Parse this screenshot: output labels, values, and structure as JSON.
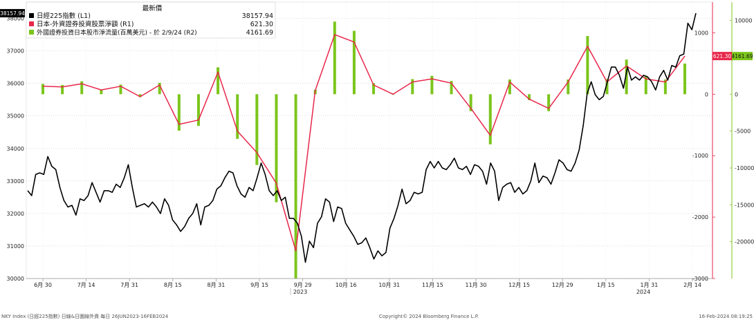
{
  "chart_data": {
    "type": "line",
    "legend": {
      "header": "最新價",
      "placement": "top-left",
      "entries": [
        {
          "name": "日經225指數 (L1)",
          "value": "38157.94",
          "color": "#000000"
        },
        {
          "name": "日本-外資證券投資股票淨額 (R1)",
          "value": "621.30",
          "color": "#e8264a"
        },
        {
          "name": "外國證券投資日本股市淨流量(百萬美元) - 於 2/9/24 (R2)",
          "value": "4161.69",
          "color": "#7cc51c"
        }
      ]
    },
    "left_axis": {
      "min": 30000,
      "max": 38500,
      "ticks": [
        "30000",
        "31000",
        "32000",
        "33000",
        "34000",
        "35000",
        "36000",
        "37000",
        "38000"
      ]
    },
    "right1_axis": {
      "min": -3000,
      "max": 1500,
      "ticks": [
        "1000",
        "0",
        "-1000",
        "-2000",
        "-3000"
      ]
    },
    "right2_axis": {
      "min": -25000,
      "max": 12500,
      "ticks": [
        "10000",
        "5000",
        "0",
        "-5000",
        "-10000",
        "-15000",
        "-20000"
      ]
    },
    "last_value_labels": {
      "nikkei": "38157.94",
      "r1": "621.30",
      "r2": "4161.69"
    },
    "x_axis": {
      "ticks": [
        "6月 30",
        "7月 14",
        "7月 31",
        "8月 15",
        "8月 31",
        "9月 15",
        "9月 29",
        "10月 16",
        "10月 31",
        "11月 15",
        "11月 30",
        "12月 15",
        "12月 29",
        "1月 15",
        "1月 31",
        "2月 14"
      ],
      "year_labels": [
        "2023",
        "2024"
      ]
    },
    "series": [
      {
        "name": "日經225指數 (L1)",
        "axis": "left",
        "values": [
          32700,
          32550,
          33200,
          33250,
          33200,
          33750,
          33450,
          33350,
          32800,
          32400,
          32200,
          32250,
          31950,
          32450,
          32400,
          32550,
          32950,
          32650,
          32350,
          32700,
          32700,
          32650,
          32900,
          32800,
          33100,
          33500,
          32800,
          32200,
          32250,
          32300,
          32200,
          32350,
          32200,
          32000,
          32450,
          32250,
          31800,
          31650,
          31450,
          31600,
          31850,
          32000,
          32300,
          31650,
          32200,
          32250,
          32400,
          32750,
          32850,
          33100,
          33300,
          33250,
          32850,
          32600,
          32500,
          32800,
          32700,
          33100,
          33550,
          33200,
          32700,
          32550,
          32700,
          32400,
          32500,
          31850,
          31850,
          31700,
          31300,
          30500,
          31150,
          30950,
          31700,
          31900,
          32450,
          32350,
          31750,
          32200,
          32150,
          31700,
          31500,
          31300,
          31050,
          31100,
          31250,
          30950,
          30600,
          30850,
          30700,
          30800,
          31550,
          31850,
          32250,
          32750,
          32300,
          32400,
          32650,
          32600,
          32650,
          33350,
          33600,
          33400,
          33600,
          33400,
          33350,
          33500,
          33700,
          33400,
          33350,
          33450,
          33200,
          33500,
          33450,
          33300,
          32900,
          33550,
          33300,
          32400,
          32800,
          32900,
          32950,
          32650,
          32800,
          32600,
          32700,
          33000,
          33550,
          32950,
          33150,
          33100,
          32900,
          33250,
          33650,
          33550,
          33350,
          33300,
          33550,
          33950,
          34700,
          35700,
          36050,
          35650,
          35500,
          35600,
          36050,
          36500,
          36500,
          36250,
          35850,
          36500,
          36100,
          36200,
          36100,
          36250,
          36200,
          36050,
          35800,
          36200,
          36400,
          36100,
          36550,
          36500,
          36850,
          36900,
          37850,
          37650,
          38157.94
        ]
      },
      {
        "name": "日本-外資證券投資股票淨額 (R1)",
        "axis": "right1",
        "x_index": [
          0,
          1,
          2,
          3,
          4,
          5,
          6,
          7,
          8,
          9,
          10,
          11,
          12,
          13,
          14,
          15,
          16,
          17,
          18,
          19,
          20,
          21,
          22,
          23,
          24,
          25,
          26,
          27,
          28,
          29,
          30,
          31,
          32,
          33
        ],
        "values": [
          130,
          120,
          170,
          70,
          130,
          -40,
          150,
          -490,
          -420,
          360,
          -600,
          -950,
          -1450,
          -2550,
          60,
          970,
          850,
          150,
          0,
          200,
          250,
          180,
          -230,
          -670,
          200,
          -80,
          -230,
          200,
          780,
          200,
          460,
          250,
          200,
          621.3
        ]
      },
      {
        "name": "外國證券投資日本股市淨流量(百萬美元) - 於 2/9/24 (R2)",
        "axis": "right2",
        "x_index": [
          0,
          1,
          2,
          3,
          4,
          5,
          6,
          7,
          8,
          9,
          10,
          11,
          12,
          13,
          14,
          15,
          16,
          17,
          18,
          19,
          20,
          21,
          22,
          23,
          24,
          25,
          26,
          27,
          28,
          29,
          30,
          31,
          32,
          33
        ],
        "values": [
          1400,
          1250,
          1750,
          650,
          1300,
          -400,
          1550,
          -4950,
          -4300,
          3650,
          -6050,
          -9600,
          -14650,
          -25000,
          600,
          9850,
          8600,
          1500,
          0,
          2050,
          2500,
          1800,
          -2300,
          -6800,
          2000,
          -800,
          -2300,
          2000,
          7900,
          2050,
          4700,
          2500,
          2000,
          4161.69
        ]
      }
    ],
    "grid": true
  },
  "footer": {
    "left": "NKY Index (日經225指數) 日線&日圖線外資  每日 26JUN2023-16FEB2024",
    "center": "Copyright© 2024 Bloomberg Finance L.P.",
    "right": "16-Feb-2024 08:19:25"
  }
}
